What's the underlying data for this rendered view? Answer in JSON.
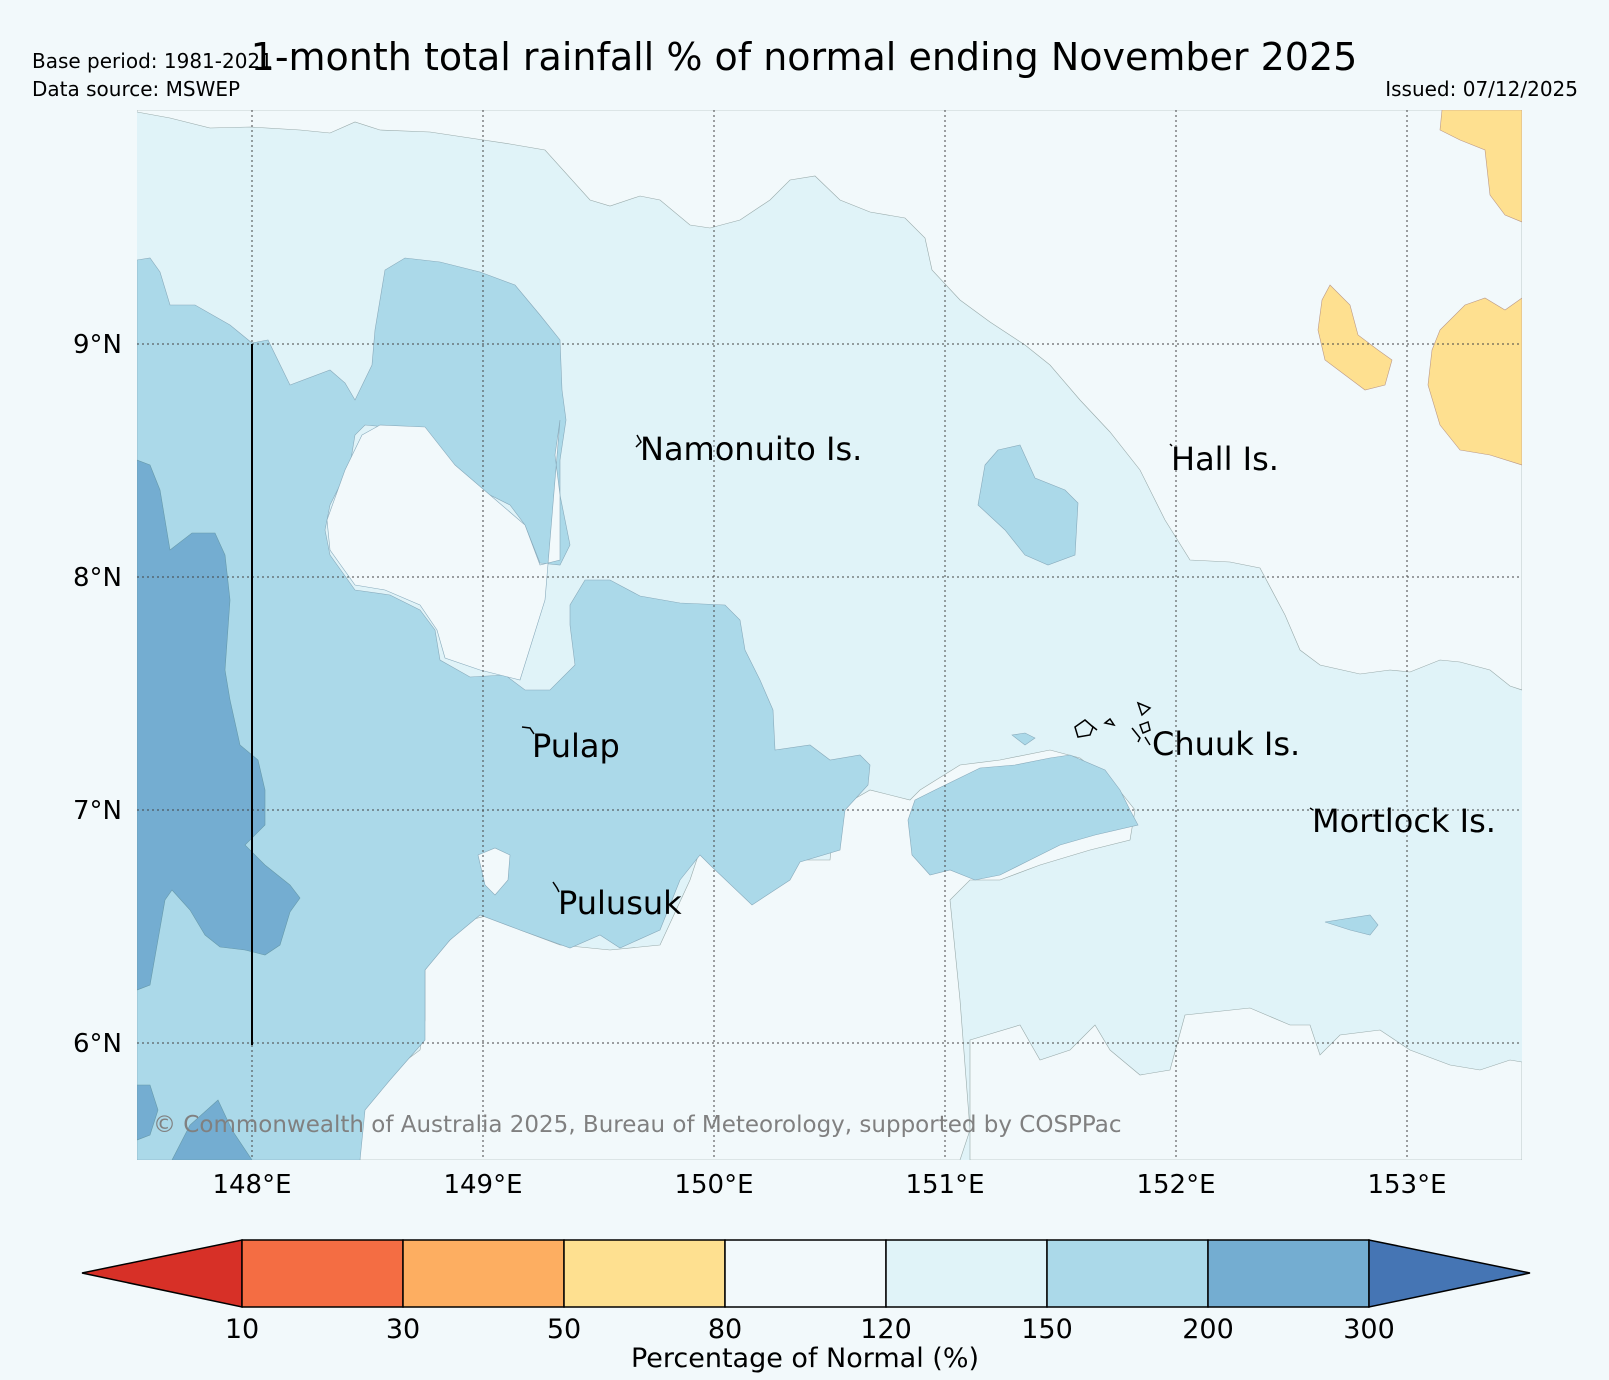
{
  "header": {
    "title": "1-month total rainfall % of normal ending November 2025",
    "base_period": "Base period: 1981-2021",
    "data_source": "Data source: MSWEP",
    "issued": "Issued: 07/12/2025"
  },
  "map": {
    "lat_labels": [
      "9°N",
      "8°N",
      "7°N",
      "6°N"
    ],
    "lon_labels": [
      "148°E",
      "149°E",
      "150°E",
      "151°E",
      "152°E",
      "153°E"
    ],
    "places": {
      "namonuito": "Namonuito Is.",
      "hall": "Hall Is.",
      "pulap": "Pulap",
      "chuuk": "Chuuk Is.",
      "mortlock": "Mortlock Is.",
      "pulusuk": "Pulusuk"
    },
    "copyright": "© Commonwealth of Australia 2025, Bureau of Meteorology, supported by COSPPac"
  },
  "colorbar": {
    "label": "Percentage of Normal (%)",
    "ticks": [
      "10",
      "30",
      "50",
      "80",
      "120",
      "150",
      "200",
      "300"
    ],
    "colors": {
      "below_10": "#d73027",
      "c10_30": "#f46d43",
      "c30_50": "#fdae61",
      "c50_80": "#fee090",
      "c80_120": "#f2f9fb",
      "c120_150": "#e0f3f8",
      "c150_200": "#abd9e9",
      "c200_300": "#74add1",
      "above_300": "#4575b4"
    }
  }
}
